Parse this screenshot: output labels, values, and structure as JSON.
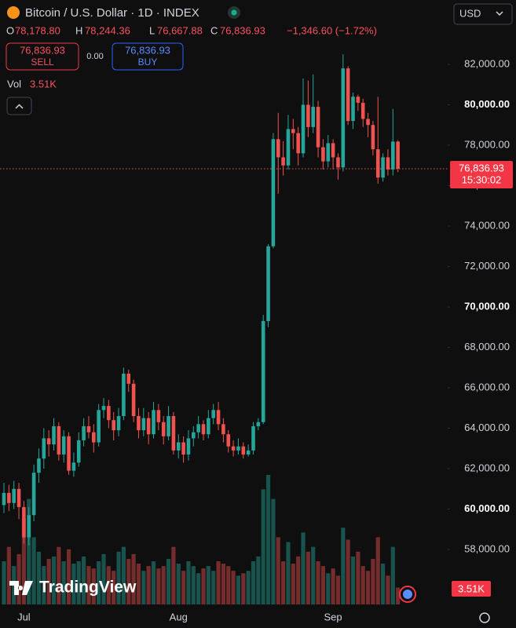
{
  "header": {
    "symbol_title": "Bitcoin / U.S. Dollar · 1D · INDEX",
    "currency": "USD",
    "o_label": "O",
    "o_value": "78,178.80",
    "h_label": "H",
    "h_value": "78,244.36",
    "l_label": "L",
    "l_value": "76,667.88",
    "c_label": "C",
    "c_value": "76,836.93",
    "change": "−1,346.60 (−1.72%)",
    "sell_price": "76,836.93",
    "sell_label": "SELL",
    "spread": "0.00",
    "buy_price": "76,836.93",
    "buy_label": "BUY",
    "vol_label": "Vol",
    "vol_value": "3.51K",
    "last_price_label": "76,836.93",
    "countdown": "15:30:02",
    "logo_text": "TradingView"
  },
  "chart_data": {
    "type": "candlestick",
    "categories": [
      null,
      null,
      null,
      null,
      "Jul",
      null,
      null,
      null,
      null,
      null,
      null,
      null,
      null,
      null,
      null,
      null,
      null,
      null,
      null,
      null,
      null,
      null,
      null,
      null,
      null,
      null,
      null,
      null,
      null,
      null,
      null,
      null,
      null,
      null,
      null,
      "Aug",
      null,
      null,
      null,
      null,
      null,
      null,
      null,
      null,
      null,
      null,
      null,
      null,
      null,
      null,
      null,
      null,
      null,
      null,
      null,
      null,
      null,
      null,
      null,
      null,
      null,
      null,
      null,
      null,
      null,
      null,
      "Sep",
      null,
      null,
      null,
      null,
      null,
      null,
      null,
      null,
      null,
      null,
      null,
      null,
      null
    ],
    "open": [
      60200,
      60800,
      60300,
      61000,
      60100,
      58600,
      59700,
      61800,
      62500,
      63500,
      63200,
      64100,
      62700,
      63600,
      61900,
      62300,
      63400,
      64100,
      63800,
      63300,
      64900,
      65100,
      64400,
      63900,
      64600,
      66700,
      66200,
      64600,
      63900,
      64500,
      63700,
      64900,
      64300,
      63600,
      64600,
      62900,
      63300,
      62700,
      63500,
      63800,
      64200,
      63700,
      64500,
      64900,
      64200,
      63700,
      63100,
      62900,
      63100,
      62700,
      62900,
      64100,
      64300,
      69300,
      73000,
      78300,
      77400,
      77000,
      78800,
      78600,
      77600,
      80000,
      78900,
      79900,
      77900,
      77200,
      78100,
      77400,
      76900,
      81800,
      79200,
      80400,
      80100,
      79300,
      79000,
      77800,
      76400,
      77400,
      76800,
      78178.8
    ],
    "high": [
      61300,
      61200,
      61400,
      61300,
      60400,
      60100,
      62200,
      63000,
      64000,
      63900,
      64500,
      64300,
      63900,
      63800,
      62800,
      63800,
      64500,
      64600,
      64200,
      65200,
      65500,
      65400,
      64800,
      65000,
      67000,
      66900,
      66400,
      65000,
      65000,
      64800,
      65300,
      65200,
      64600,
      65100,
      64800,
      63700,
      63600,
      63900,
      64100,
      64600,
      64400,
      64900,
      65200,
      65300,
      64500,
      63900,
      63400,
      63500,
      63300,
      63200,
      64300,
      64500,
      69600,
      73100,
      78600,
      79600,
      78200,
      79500,
      79300,
      78900,
      81300,
      81200,
      81500,
      80200,
      78300,
      78500,
      78300,
      77600,
      82500,
      81900,
      80600,
      80500,
      80300,
      79600,
      79200,
      80400,
      77600,
      77800,
      79800,
      78244.36
    ],
    "low": [
      59800,
      59900,
      60000,
      59500,
      58300,
      58200,
      59400,
      61300,
      62000,
      62600,
      62900,
      62400,
      62300,
      61700,
      61600,
      62100,
      63100,
      63500,
      62800,
      63100,
      64500,
      64000,
      63400,
      63600,
      64400,
      65800,
      64300,
      63500,
      63600,
      63200,
      63500,
      63900,
      63200,
      63400,
      62700,
      62500,
      62300,
      62400,
      63100,
      63500,
      63400,
      63500,
      64200,
      63900,
      63300,
      62800,
      62600,
      62700,
      62500,
      62600,
      62700,
      63900,
      64200,
      69000,
      72900,
      75600,
      76500,
      76800,
      77800,
      77000,
      77400,
      78400,
      78600,
      77400,
      76800,
      76900,
      76800,
      76300,
      76700,
      79000,
      78800,
      79700,
      78900,
      78400,
      77500,
      76100,
      76200,
      76500,
      76500,
      76667.88
    ],
    "close": [
      60800,
      60300,
      61000,
      60100,
      58600,
      59700,
      61800,
      62500,
      63500,
      63200,
      64100,
      62700,
      63600,
      61900,
      62300,
      63400,
      64100,
      63800,
      63300,
      64900,
      65100,
      64400,
      63900,
      64600,
      66700,
      66200,
      64600,
      63900,
      64500,
      63700,
      64900,
      64300,
      63600,
      64600,
      62900,
      63300,
      62700,
      63500,
      63800,
      64200,
      63700,
      64500,
      64900,
      64200,
      63700,
      63100,
      62900,
      63100,
      62700,
      62900,
      64100,
      64300,
      69300,
      73000,
      78300,
      77400,
      77000,
      78800,
      78600,
      77600,
      80000,
      78900,
      79900,
      77900,
      77200,
      78100,
      77400,
      76900,
      81800,
      79200,
      80400,
      80100,
      79300,
      79000,
      77800,
      76400,
      77400,
      76800,
      78180,
      76836.93
    ],
    "volume": [
      9000,
      12000,
      8000,
      10500,
      18000,
      22000,
      14000,
      11000,
      8000,
      9500,
      10000,
      12000,
      9000,
      11500,
      8500,
      9000,
      10000,
      8000,
      7500,
      9000,
      10500,
      8000,
      7000,
      11000,
      12000,
      9500,
      10500,
      8500,
      7000,
      8000,
      9000,
      7500,
      8000,
      9500,
      12000,
      8500,
      7000,
      9000,
      8000,
      6500,
      7500,
      8000,
      7000,
      9000,
      8500,
      8000,
      7000,
      6000,
      6500,
      7000,
      9000,
      10000,
      24000,
      27000,
      22000,
      14000,
      9000,
      13000,
      8500,
      10000,
      15000,
      11000,
      12000,
      9000,
      8000,
      6500,
      7500,
      6000,
      16000,
      13500,
      10000,
      11000,
      8000,
      7000,
      9500,
      14000,
      8500,
      6000,
      12000,
      3510
    ],
    "up_color": "#26a69a",
    "down_color": "#ef5350",
    "ylim": [
      55282,
      85184
    ],
    "yticks": [
      {
        "value": 58000,
        "label": "58,000.00"
      },
      {
        "value": 60000,
        "label": "60,000.00"
      },
      {
        "value": 62000,
        "label": "62,000.00"
      },
      {
        "value": 64000,
        "label": "64,000.00"
      },
      {
        "value": 66000,
        "label": "66,000.00"
      },
      {
        "value": 68000,
        "label": "68,000.00"
      },
      {
        "value": 70000,
        "label": "70,000.00"
      },
      {
        "value": 72000,
        "label": "72,000.00"
      },
      {
        "value": 74000,
        "label": "74,000.00"
      },
      {
        "value": 76000,
        "label": "76,000.00"
      },
      {
        "value": 78000,
        "label": "78,000.00"
      },
      {
        "value": 80000,
        "label": "80,000.00"
      },
      {
        "value": 82000,
        "label": "82,000.00"
      }
    ],
    "volume_ylim": [
      0,
      36000
    ]
  }
}
